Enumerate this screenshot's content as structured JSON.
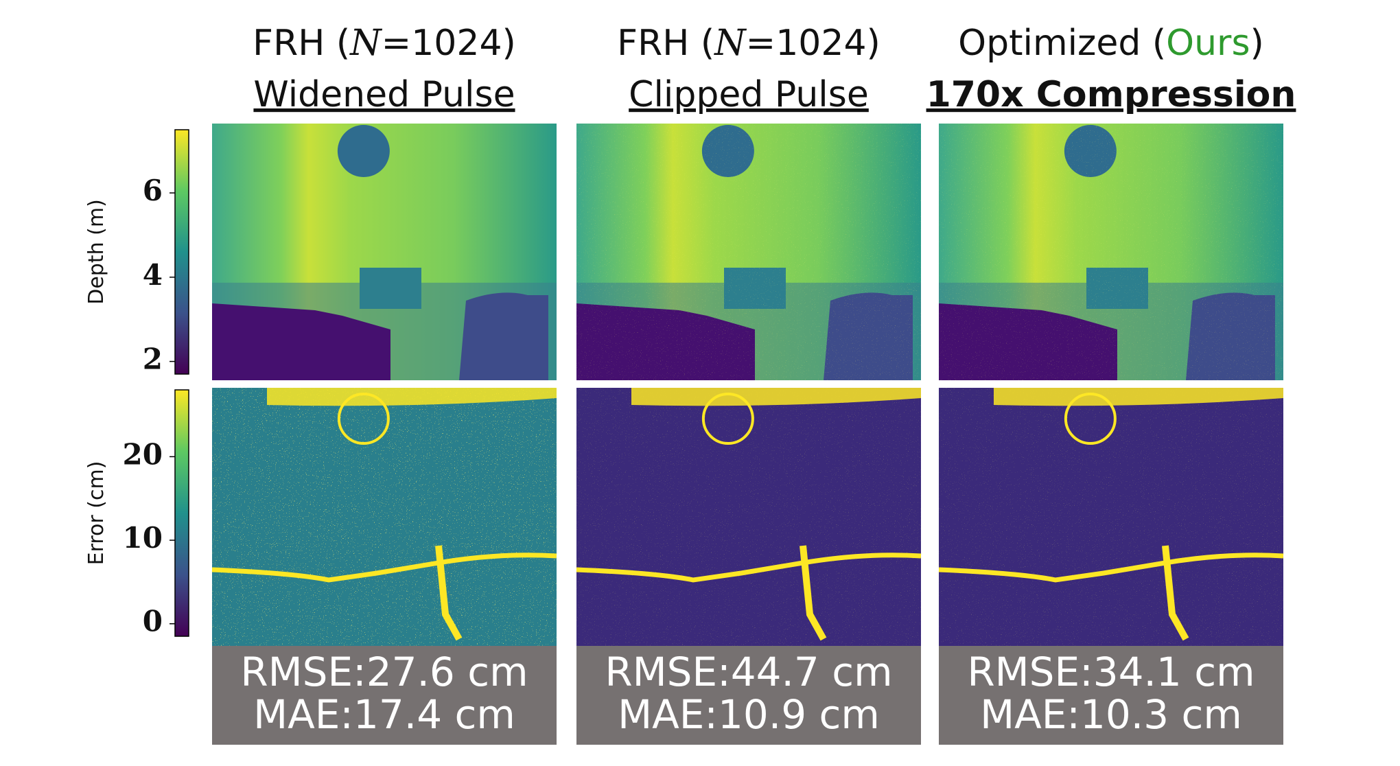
{
  "colorbars": [
    {
      "label": "Depth (m)",
      "lim": [
        1.7,
        7.5
      ],
      "ticks": [
        2,
        4,
        6
      ]
    },
    {
      "label": "Error (cm)",
      "lim": [
        -1.5,
        28
      ],
      "ticks": [
        0,
        10,
        20
      ]
    }
  ],
  "columns": [
    {
      "title": {
        "prefix": "FRH (",
        "italic": "N",
        "suffix": "=1024)"
      },
      "subtitle": "Widened Pulse",
      "metrics": [
        "RMSE:27.6 cm",
        "MAE:17.4 cm"
      ]
    },
    {
      "title": {
        "prefix": "FRH (",
        "italic": "N",
        "suffix": "=1024)"
      },
      "subtitle": "Clipped Pulse",
      "metrics": [
        "RMSE:44.7 cm",
        "MAE:10.9 cm"
      ]
    },
    {
      "title": {
        "prefix": "Optimized (",
        "highlight": "Ours",
        "suffix": ")"
      },
      "subtitle": "170x Compression",
      "metrics": [
        "RMSE:34.1 cm",
        "MAE:10.3 cm"
      ]
    }
  ]
}
